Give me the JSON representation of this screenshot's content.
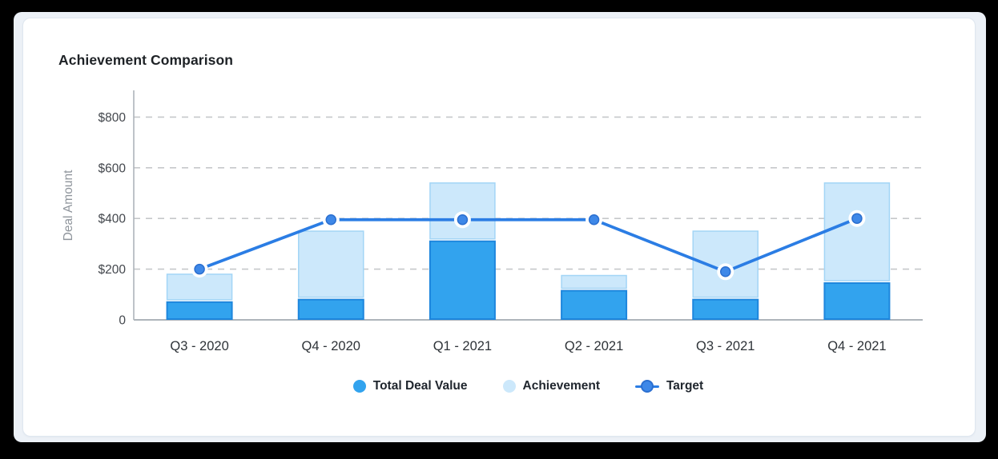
{
  "card": {
    "title": "Achievement Comparison"
  },
  "chart_data": {
    "type": "bar",
    "subtype": "stacked-bars-with-line",
    "title": "Achievement Comparison",
    "xlabel": "",
    "ylabel": "Deal Amount",
    "ylim": [
      0,
      900
    ],
    "grid": "horizontal-dashed",
    "legend_position": "bottom",
    "categories": [
      "Q3 - 2020",
      "Q4 - 2020",
      "Q1 - 2021",
      "Q2 - 2021",
      "Q3 - 2021",
      "Q4 - 2021"
    ],
    "y_axis": {
      "ticks": [
        {
          "label": "$800",
          "value": 800
        },
        {
          "label": "$600",
          "value": 600
        },
        {
          "label": "$400",
          "value": 400
        },
        {
          "label": "$200",
          "value": 200
        },
        {
          "label": "0",
          "value": 0
        }
      ]
    },
    "series": [
      {
        "name": "Total Deal Value",
        "kind": "bar",
        "stack": "deals",
        "color": "#32a3ee",
        "border_color": "#1d86dd",
        "values": [
          70,
          80,
          310,
          115,
          80,
          145
        ]
      },
      {
        "name": "Achievement",
        "kind": "bar",
        "stack": "deals",
        "color": "#cce8fb",
        "border_color": "#a3d5f6",
        "values": [
          110,
          270,
          230,
          60,
          270,
          395
        ]
      },
      {
        "name": "Target",
        "kind": "line",
        "color": "#2b7de4",
        "marker_color": "#3e88e8",
        "marker_edge_color": "#2b6fd0",
        "values": [
          200,
          395,
          395,
          395,
          190,
          400
        ]
      }
    ],
    "colors": {
      "grid": "#c6c8ca",
      "axis": "#aeb4ba",
      "tick_text": "#43474d",
      "category_text": "#2e3338",
      "axis_title_text": "#8f959c"
    }
  }
}
